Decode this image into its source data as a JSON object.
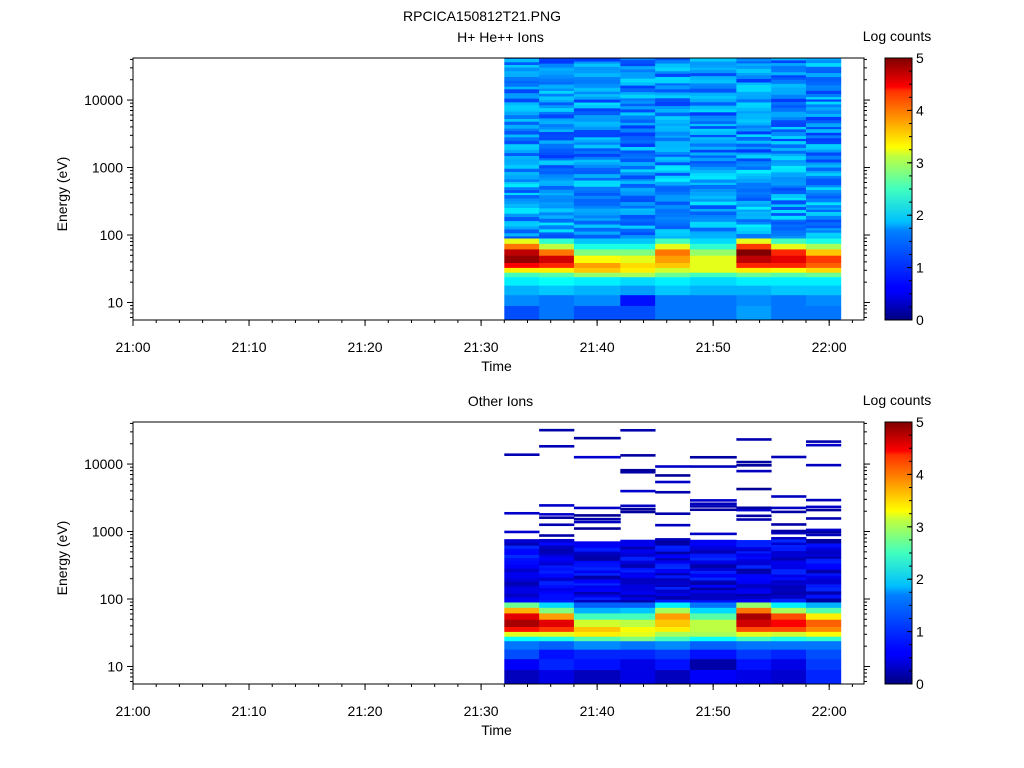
{
  "figure_title": "RPCICA150812T21.PNG",
  "chart_data": [
    {
      "type": "heatmap",
      "title": "H+ He++ Ions",
      "xlabel": "Time",
      "ylabel": "Energy (eV)",
      "colorbar_label": "Log counts",
      "colorbar_ticks": [
        "0",
        "1",
        "2",
        "3",
        "4",
        "5"
      ],
      "x_ticks": [
        "21:00",
        "21:10",
        "21:20",
        "21:30",
        "21:40",
        "21:50",
        "22:00"
      ],
      "y_ticks": [
        "10",
        "100",
        "1000",
        "10000"
      ],
      "y_scale": "log",
      "ylim": [
        5.5,
        42000
      ],
      "xlim": [
        "21:00",
        "22:03"
      ],
      "clim": [
        0,
        5
      ],
      "time_bins": [
        "21:32",
        "21:35",
        "21:38",
        "21:42",
        "21:45",
        "21:48",
        "21:52",
        "21:55",
        "21:58"
      ],
      "data_end": "22:01",
      "low_energy_rows": [
        {
          "e_lo": 5.5,
          "e_hi": 9,
          "values": [
            1.0,
            1.2,
            1.0,
            1.0,
            1.2,
            1.2,
            1.4,
            1.2,
            1.2
          ]
        },
        {
          "e_lo": 9,
          "e_hi": 13,
          "values": [
            1.3,
            1.2,
            1.3,
            0.7,
            1.2,
            1.2,
            1.3,
            1.2,
            1.3
          ]
        },
        {
          "e_lo": 13,
          "e_hi": 18,
          "values": [
            1.5,
            1.6,
            1.5,
            1.4,
            1.6,
            1.5,
            1.5,
            1.6,
            1.6
          ]
        },
        {
          "e_lo": 18,
          "e_hi": 24,
          "values": [
            1.8,
            1.9,
            1.8,
            1.7,
            1.8,
            1.7,
            1.8,
            1.8,
            1.8
          ]
        },
        {
          "e_lo": 24,
          "e_hi": 28,
          "values": [
            2.2,
            2.3,
            2.6,
            2.7,
            2.4,
            2.2,
            2.4,
            2.3,
            2.4
          ]
        },
        {
          "e_lo": 28,
          "e_hi": 33,
          "values": [
            3.2,
            3.2,
            3.4,
            3.2,
            2.9,
            3.0,
            3.2,
            3.1,
            3.3
          ]
        },
        {
          "e_lo": 33,
          "e_hi": 39,
          "values": [
            4.4,
            4.2,
            3.6,
            3.3,
            3.4,
            3.0,
            4.2,
            4.2,
            3.9
          ]
        },
        {
          "e_lo": 39,
          "e_hi": 50,
          "values": [
            4.9,
            4.6,
            3.1,
            3.0,
            3.6,
            3.0,
            4.7,
            4.5,
            4.1
          ]
        },
        {
          "e_lo": 50,
          "e_hi": 62,
          "values": [
            4.7,
            3.8,
            2.5,
            2.5,
            3.8,
            2.6,
            5.0,
            4.2,
            3.4
          ]
        },
        {
          "e_lo": 62,
          "e_hi": 75,
          "values": [
            3.8,
            2.8,
            2.0,
            2.0,
            3.0,
            2.1,
            4.1,
            3.0,
            2.7
          ]
        },
        {
          "e_lo": 75,
          "e_hi": 90,
          "values": [
            3.0,
            2.1,
            1.6,
            1.6,
            2.2,
            1.7,
            3.0,
            2.2,
            2.0
          ]
        }
      ]
    },
    {
      "type": "heatmap",
      "title": "Other Ions",
      "xlabel": "Time",
      "ylabel": "Energy (eV)",
      "colorbar_label": "Log counts",
      "colorbar_ticks": [
        "0",
        "1",
        "2",
        "3",
        "4",
        "5"
      ],
      "x_ticks": [
        "21:00",
        "21:10",
        "21:20",
        "21:30",
        "21:40",
        "21:50",
        "22:00"
      ],
      "y_ticks": [
        "10",
        "100",
        "1000",
        "10000"
      ],
      "y_scale": "log",
      "ylim": [
        5.5,
        42000
      ],
      "xlim": [
        "21:00",
        "22:03"
      ],
      "clim": [
        0,
        5
      ],
      "time_bins": [
        "21:32",
        "21:35",
        "21:38",
        "21:42",
        "21:45",
        "21:48",
        "21:52",
        "21:55",
        "21:58"
      ],
      "data_end": "22:01",
      "low_energy_rows": [
        {
          "e_lo": 5.5,
          "e_hi": 9,
          "values": [
            0.3,
            0.5,
            0.3,
            0.5,
            0.3,
            0.6,
            0.5,
            0.4,
            0.8
          ]
        },
        {
          "e_lo": 9,
          "e_hi": 13,
          "values": [
            0.6,
            0.8,
            0.7,
            0.5,
            0.7,
            0.2,
            0.7,
            0.5,
            0.9
          ]
        },
        {
          "e_lo": 13,
          "e_hi": 18,
          "values": [
            1.0,
            0.7,
            0.8,
            0.8,
            0.9,
            0.7,
            0.9,
            0.8,
            1.0
          ]
        },
        {
          "e_lo": 18,
          "e_hi": 24,
          "values": [
            1.2,
            1.1,
            1.3,
            1.2,
            1.3,
            1.1,
            1.2,
            1.2,
            1.2
          ]
        },
        {
          "e_lo": 24,
          "e_hi": 28,
          "values": [
            1.9,
            2.0,
            2.3,
            2.5,
            2.2,
            1.9,
            2.2,
            2.0,
            2.1
          ]
        },
        {
          "e_lo": 28,
          "e_hi": 33,
          "values": [
            3.0,
            3.0,
            3.2,
            3.0,
            2.7,
            2.7,
            3.0,
            2.9,
            3.1
          ]
        },
        {
          "e_lo": 33,
          "e_hi": 39,
          "values": [
            4.3,
            4.1,
            3.4,
            3.1,
            3.2,
            2.8,
            4.0,
            4.0,
            3.7
          ]
        },
        {
          "e_lo": 39,
          "e_hi": 50,
          "values": [
            4.8,
            4.5,
            2.9,
            2.8,
            3.4,
            2.8,
            4.6,
            4.4,
            3.9
          ]
        },
        {
          "e_lo": 50,
          "e_hi": 62,
          "values": [
            4.5,
            3.6,
            2.2,
            2.2,
            3.6,
            2.3,
            4.8,
            4.0,
            3.2
          ]
        },
        {
          "e_lo": 62,
          "e_hi": 75,
          "values": [
            3.5,
            2.5,
            1.5,
            1.6,
            2.7,
            1.7,
            3.8,
            2.7,
            2.3
          ]
        },
        {
          "e_lo": 75,
          "e_hi": 90,
          "values": [
            2.4,
            1.7,
            1.1,
            1.1,
            1.8,
            1.2,
            2.6,
            1.8,
            1.5
          ]
        }
      ]
    }
  ]
}
